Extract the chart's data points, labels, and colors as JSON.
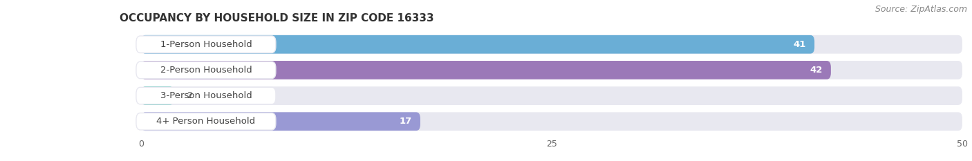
{
  "title": "OCCUPANCY BY HOUSEHOLD SIZE IN ZIP CODE 16333",
  "source": "Source: ZipAtlas.com",
  "categories": [
    "1-Person Household",
    "2-Person Household",
    "3-Person Household",
    "4+ Person Household"
  ],
  "values": [
    41,
    42,
    2,
    17
  ],
  "bar_colors": [
    "#6aaed6",
    "#9b79b8",
    "#5ec4b8",
    "#9999d4"
  ],
  "bar_bg_color": "#e8e8f0",
  "label_bg_color": "#ffffff",
  "xlim_min": -8,
  "xlim_max": 50,
  "data_min": 0,
  "data_max": 50,
  "xticks": [
    0,
    25,
    50
  ],
  "label_fontsize": 9.5,
  "value_fontsize": 9.5,
  "title_fontsize": 11,
  "source_fontsize": 9
}
